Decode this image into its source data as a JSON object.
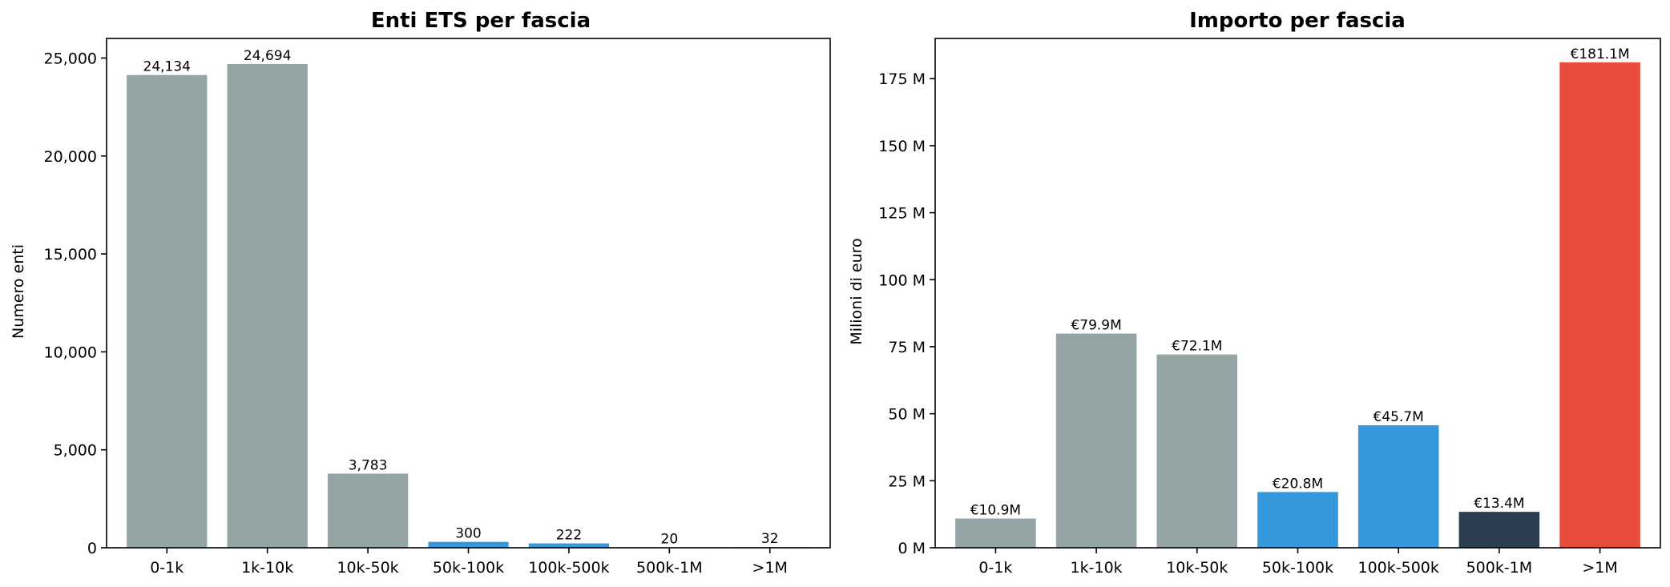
{
  "chart_data": [
    {
      "type": "bar",
      "title": "Enti ETS per fascia",
      "xlabel": "",
      "ylabel": "Numero enti",
      "categories": [
        "0-1k",
        "1k-10k",
        "10k-50k",
        "50k-100k",
        "100k-500k",
        "500k-1M",
        ">1M"
      ],
      "values": [
        24134,
        24694,
        3783,
        300,
        222,
        20,
        32
      ],
      "data_labels": [
        "24,134",
        "24,694",
        "3,783",
        "300",
        "222",
        "20",
        "32"
      ],
      "colors": [
        "#95a5a6",
        "#95a5a6",
        "#95a5a6",
        "#3498db",
        "#3498db",
        "#3498db",
        "#3498db"
      ],
      "ylim": [
        0,
        26000
      ],
      "yticks": [
        0,
        5000,
        10000,
        15000,
        20000,
        25000
      ],
      "ytick_labels": [
        "0",
        "5,000",
        "10,000",
        "15,000",
        "20,000",
        "25,000"
      ],
      "grid": false,
      "legend": "none"
    },
    {
      "type": "bar",
      "title": "Importo per fascia",
      "xlabel": "",
      "ylabel": "Milioni di euro",
      "categories": [
        "0-1k",
        "1k-10k",
        "10k-50k",
        "50k-100k",
        "100k-500k",
        "500k-1M",
        ">1M"
      ],
      "values": [
        10.9,
        79.9,
        72.1,
        20.8,
        45.7,
        13.4,
        181.1
      ],
      "data_labels": [
        "€10.9M",
        "€79.9M",
        "€72.1M",
        "€20.8M",
        "€45.7M",
        "€13.4M",
        "€181.1M"
      ],
      "colors": [
        "#95a5a6",
        "#95a5a6",
        "#95a5a6",
        "#3498db",
        "#3498db",
        "#2c3e50",
        "#e74c3c"
      ],
      "ylim": [
        0,
        190
      ],
      "yticks": [
        0,
        25,
        50,
        75,
        100,
        125,
        150,
        175
      ],
      "ytick_labels": [
        "0 M",
        "25 M",
        "50 M",
        "75 M",
        "100 M",
        "125 M",
        "150 M",
        "175 M"
      ],
      "grid": false,
      "legend": "none"
    }
  ]
}
